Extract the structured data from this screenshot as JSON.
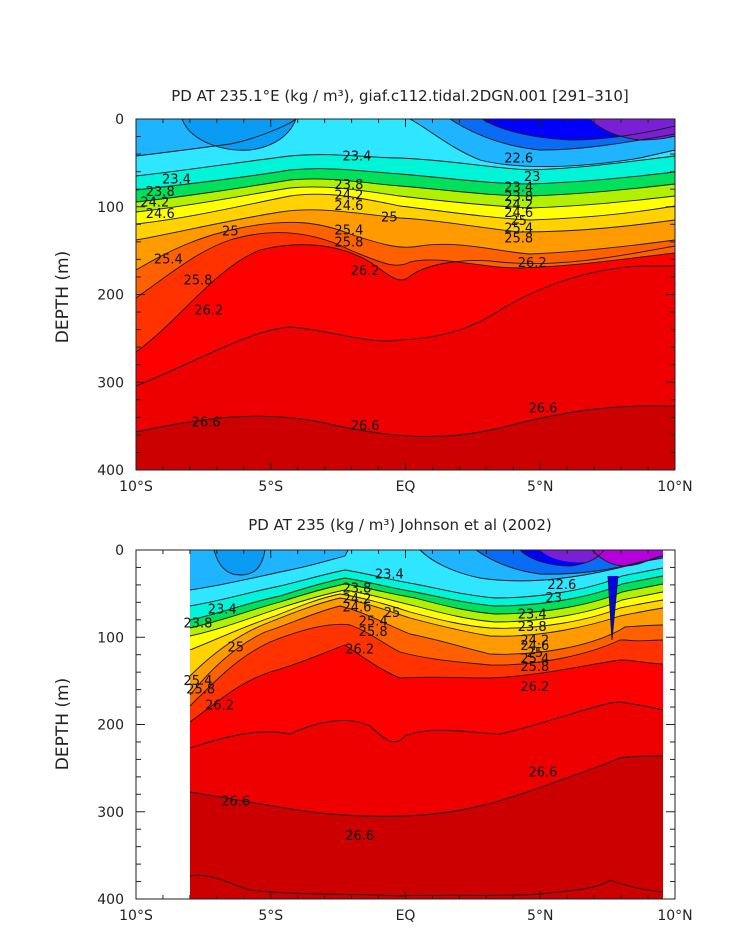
{
  "palette": {
    "deep_purple": "#7a1fd6",
    "violet": "#b400dc",
    "blue": "#0000ff",
    "mid_blue": "#0a6cf5",
    "sky_blue": "#1eb4ff",
    "cyan": "#2ee6ff",
    "aqua": "#00f5d8",
    "green": "#00e05a",
    "lime": "#b0f000",
    "yellow": "#ffff00",
    "gold": "#ffd200",
    "orange": "#ff9b00",
    "dark_orange": "#ff6000",
    "red_orange": "#ff3200",
    "red": "#ff0000",
    "dark_red": "#cc0000"
  },
  "chart_data": [
    {
      "type": "contour",
      "title": "PD AT 235.1°E (kg / m³), giaf.c112.tidal.2DGN.001 [291–310]",
      "xlabel": "",
      "ylabel": "DEPTH (m)",
      "x_range": [
        -10,
        10
      ],
      "y_range": [
        0,
        400
      ],
      "x_ticks": [
        -10,
        -5,
        0,
        5,
        10
      ],
      "x_tick_labels": [
        "10°S",
        "5°S",
        "EQ",
        "5°N",
        "10°N"
      ],
      "y_ticks": [
        0,
        100,
        200,
        300,
        400
      ],
      "y_tick_labels": [
        "0",
        "100",
        "200",
        "300",
        "400"
      ],
      "contour_labels": [
        {
          "text": "23.4",
          "lat": -8.5,
          "depth": 69
        },
        {
          "text": "23.8",
          "lat": -9.1,
          "depth": 83
        },
        {
          "text": "24.2",
          "lat": -9.3,
          "depth": 95
        },
        {
          "text": "24.6",
          "lat": -9.1,
          "depth": 108
        },
        {
          "text": "25",
          "lat": -6.5,
          "depth": 128
        },
        {
          "text": "25.4",
          "lat": -8.8,
          "depth": 160
        },
        {
          "text": "25.8",
          "lat": -7.7,
          "depth": 184
        },
        {
          "text": "26.2",
          "lat": -7.3,
          "depth": 218
        },
        {
          "text": "26.6",
          "lat": -7.4,
          "depth": 346
        },
        {
          "text": "23.4",
          "lat": -1.8,
          "depth": 43
        },
        {
          "text": "23.8",
          "lat": -2.1,
          "depth": 75
        },
        {
          "text": "24.2",
          "lat": -2.1,
          "depth": 87
        },
        {
          "text": "24.6",
          "lat": -2.1,
          "depth": 99
        },
        {
          "text": "25",
          "lat": -0.6,
          "depth": 112
        },
        {
          "text": "25.4",
          "lat": -2.1,
          "depth": 127
        },
        {
          "text": "25.8",
          "lat": -2.1,
          "depth": 141
        },
        {
          "text": "26.2",
          "lat": -1.5,
          "depth": 173
        },
        {
          "text": "26.6",
          "lat": -1.5,
          "depth": 350
        },
        {
          "text": "22.6",
          "lat": 4.2,
          "depth": 45
        },
        {
          "text": "23",
          "lat": 4.7,
          "depth": 66
        },
        {
          "text": "23.4",
          "lat": 4.2,
          "depth": 78
        },
        {
          "text": "23.8",
          "lat": 4.2,
          "depth": 89
        },
        {
          "text": "24.2",
          "lat": 4.2,
          "depth": 98
        },
        {
          "text": "24.6",
          "lat": 4.2,
          "depth": 107
        },
        {
          "text": "25",
          "lat": 4.2,
          "depth": 116
        },
        {
          "text": "25.4",
          "lat": 4.2,
          "depth": 125
        },
        {
          "text": "25.8",
          "lat": 4.2,
          "depth": 136
        },
        {
          "text": "26.2",
          "lat": 4.7,
          "depth": 164
        },
        {
          "text": "26.6",
          "lat": 5.1,
          "depth": 330
        }
      ]
    },
    {
      "type": "contour",
      "title": "PD AT 235 (kg / m³) Johnson et al (2002)",
      "xlabel": "",
      "ylabel": "DEPTH (m)",
      "x_range": [
        -10,
        10
      ],
      "y_range": [
        0,
        400
      ],
      "data_lat_range": [
        -8,
        10
      ],
      "x_ticks": [
        -10,
        -5,
        0,
        5,
        10
      ],
      "x_tick_labels": [
        "10°S",
        "5°S",
        "EQ",
        "5°N",
        "10°N"
      ],
      "y_ticks": [
        0,
        100,
        200,
        300,
        400
      ],
      "y_tick_labels": [
        "0",
        "100",
        "200",
        "300",
        "400"
      ],
      "contour_labels": [
        {
          "text": "23.4",
          "lat": -6.8,
          "depth": 68
        },
        {
          "text": "23.8",
          "lat": -7.7,
          "depth": 84
        },
        {
          "text": "25",
          "lat": -6.3,
          "depth": 112
        },
        {
          "text": "25.4",
          "lat": -7.7,
          "depth": 150
        },
        {
          "text": "25.8",
          "lat": -7.6,
          "depth": 160
        },
        {
          "text": "26.2",
          "lat": -6.9,
          "depth": 178
        },
        {
          "text": "26.6",
          "lat": -6.3,
          "depth": 288
        },
        {
          "text": "23.4",
          "lat": -0.6,
          "depth": 28
        },
        {
          "text": "23.8",
          "lat": -1.8,
          "depth": 44
        },
        {
          "text": "24.2",
          "lat": -1.8,
          "depth": 56
        },
        {
          "text": "24.6",
          "lat": -1.8,
          "depth": 66
        },
        {
          "text": "25",
          "lat": -0.5,
          "depth": 72
        },
        {
          "text": "25.4",
          "lat": -1.2,
          "depth": 82
        },
        {
          "text": "25.8",
          "lat": -1.2,
          "depth": 94
        },
        {
          "text": "26.2",
          "lat": -1.7,
          "depth": 114
        },
        {
          "text": "26.6",
          "lat": -1.7,
          "depth": 328
        },
        {
          "text": "22.6",
          "lat": 5.8,
          "depth": 40
        },
        {
          "text": "23",
          "lat": 5.5,
          "depth": 55
        },
        {
          "text": "23.4",
          "lat": 4.7,
          "depth": 74
        },
        {
          "text": "23.8",
          "lat": 4.7,
          "depth": 88
        },
        {
          "text": "24.2",
          "lat": 4.8,
          "depth": 104
        },
        {
          "text": "24.6",
          "lat": 4.8,
          "depth": 110
        },
        {
          "text": "25",
          "lat": 4.8,
          "depth": 118
        },
        {
          "text": "25.4",
          "lat": 4.8,
          "depth": 125
        },
        {
          "text": "25.8",
          "lat": 4.8,
          "depth": 134
        },
        {
          "text": "26.2",
          "lat": 4.8,
          "depth": 157
        },
        {
          "text": "26.6",
          "lat": 5.1,
          "depth": 255
        }
      ]
    }
  ]
}
